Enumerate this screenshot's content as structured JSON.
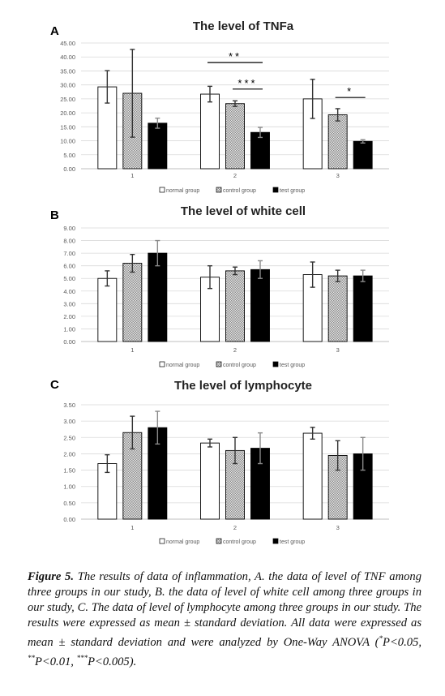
{
  "legend": {
    "normal": "normal group",
    "control": "control group",
    "test": "test group"
  },
  "colors": {
    "normal": "#ffffff",
    "control": "#c8c8c8",
    "test": "#000000",
    "axis_text": "#595959",
    "gridline": "#d9d9d9"
  },
  "caption": {
    "figure_label": "Figure 5.",
    "text": " The results of data of inflammation, A. the data of level of TNF among three groups in our study, B. the data of level of white cell among three groups in our study, C. The data of level of lymphocyte among three groups in our study. The results were expressed as mean ± standard deviation. All data were expressed as mean ± standard deviation and were analyzed by One-Way ANOVA (",
    "sig1_mark": "*",
    "sig1": "P<0.05, ",
    "sig2_mark": "**",
    "sig2": "P<0.01, ",
    "sig3_mark": "***",
    "sig3": "P<0.005)."
  },
  "chart_data": [
    {
      "panel_label": "A",
      "type": "bar",
      "title": "The level of TNFa",
      "categories": [
        "1",
        "2",
        "3"
      ],
      "ylim": [
        0,
        45
      ],
      "yticks": [
        "0.00",
        "5.00",
        "10.00",
        "15.00",
        "20.00",
        "25.00",
        "30.00",
        "35.00",
        "40.00",
        "45.00"
      ],
      "series": [
        {
          "name": "normal group",
          "values": [
            29.3,
            26.7,
            25.0
          ],
          "errors": [
            5.8,
            2.8,
            7.0
          ]
        },
        {
          "name": "control group",
          "values": [
            27.0,
            23.3,
            19.3
          ],
          "errors": [
            15.7,
            1.0,
            2.2
          ]
        },
        {
          "name": "test group",
          "values": [
            16.3,
            13.0,
            9.8
          ],
          "errors": [
            1.8,
            1.8,
            0.6
          ]
        }
      ],
      "annotations": [
        {
          "text": "**",
          "category": "2",
          "from_series": 0,
          "to_series": 2,
          "y": 38.0
        },
        {
          "text": "***",
          "category": "2",
          "from_series": 1,
          "to_series": 2,
          "y": 28.5
        },
        {
          "text": "*",
          "category": "3",
          "from_series": 1,
          "to_series": 2,
          "y": 25.5
        }
      ]
    },
    {
      "panel_label": "B",
      "type": "bar",
      "title": "The level of white cell",
      "categories": [
        "1",
        "2",
        "3"
      ],
      "ylim": [
        0,
        9
      ],
      "yticks": [
        "0.00",
        "1.00",
        "2.00",
        "3.00",
        "4.00",
        "5.00",
        "6.00",
        "7.00",
        "8.00",
        "9.00"
      ],
      "series": [
        {
          "name": "normal group",
          "values": [
            5.0,
            5.1,
            5.3
          ],
          "errors": [
            0.6,
            0.9,
            1.0
          ]
        },
        {
          "name": "control group",
          "values": [
            6.2,
            5.6,
            5.2
          ],
          "errors": [
            0.7,
            0.3,
            0.45
          ]
        },
        {
          "name": "test group",
          "values": [
            7.0,
            5.7,
            5.2
          ],
          "errors": [
            1.0,
            0.7,
            0.45
          ]
        }
      ],
      "annotations": []
    },
    {
      "panel_label": "C",
      "type": "bar",
      "title": "The level of lymphocyte",
      "categories": [
        "1",
        "2",
        "3"
      ],
      "ylim": [
        0,
        3.5
      ],
      "yticks": [
        "0.00",
        "0.50",
        "1.00",
        "1.50",
        "2.00",
        "2.50",
        "3.00",
        "3.50"
      ],
      "series": [
        {
          "name": "normal group",
          "values": [
            1.7,
            2.33,
            2.63
          ],
          "errors": [
            0.27,
            0.12,
            0.18
          ]
        },
        {
          "name": "control group",
          "values": [
            2.65,
            2.1,
            1.95
          ],
          "errors": [
            0.5,
            0.4,
            0.45
          ]
        },
        {
          "name": "test group",
          "values": [
            2.8,
            2.17,
            2.0
          ],
          "errors": [
            0.5,
            0.47,
            0.5
          ]
        }
      ],
      "annotations": []
    }
  ]
}
